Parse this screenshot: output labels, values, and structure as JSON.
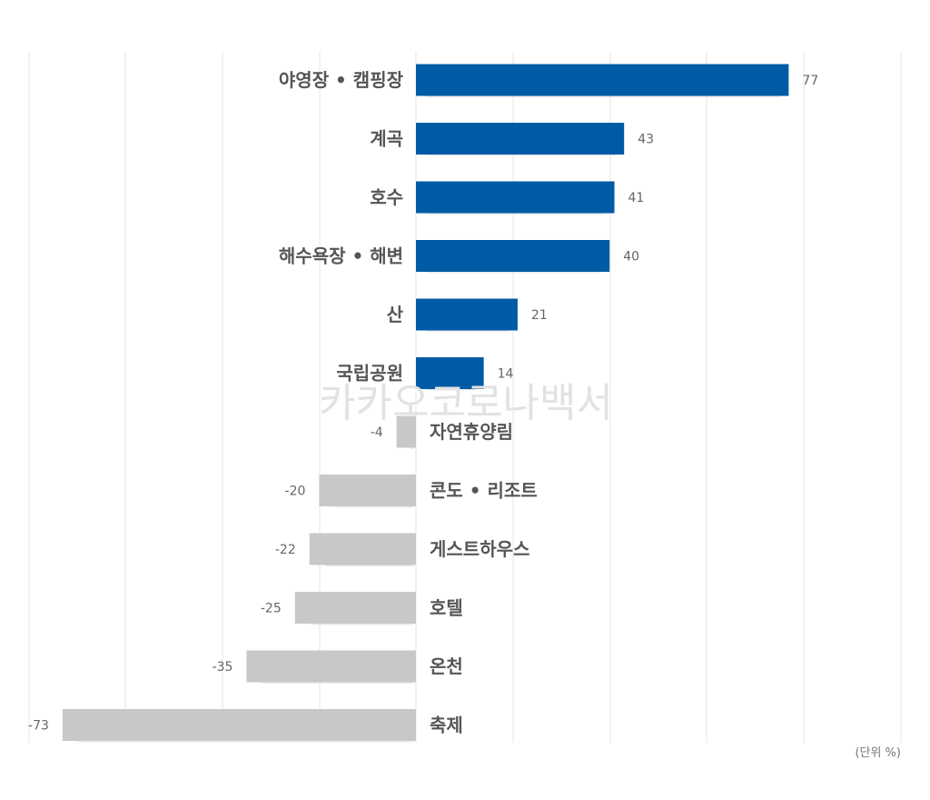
{
  "chart_data": {
    "type": "bar",
    "orientation": "horizontal",
    "categories": [
      "야영장 • 캠핑장",
      "계곡",
      "호수",
      "해수욕장 • 해변",
      "산",
      "국립공원",
      "자연휴양림",
      "콘도 • 리조트",
      "게스트하우스",
      "호텔",
      "온천",
      "축제"
    ],
    "values": [
      77,
      43,
      41,
      40,
      21,
      14,
      -4,
      -20,
      -22,
      -25,
      -35,
      -73
    ],
    "xlim": [
      -80,
      100
    ],
    "unit_label": "(단위 %)",
    "grid": true,
    "colors": {
      "positive": "#005ba6",
      "negative": "#c8c8c8",
      "shadow": "#d9d9d9"
    }
  },
  "watermark": "카카오코로나백서"
}
